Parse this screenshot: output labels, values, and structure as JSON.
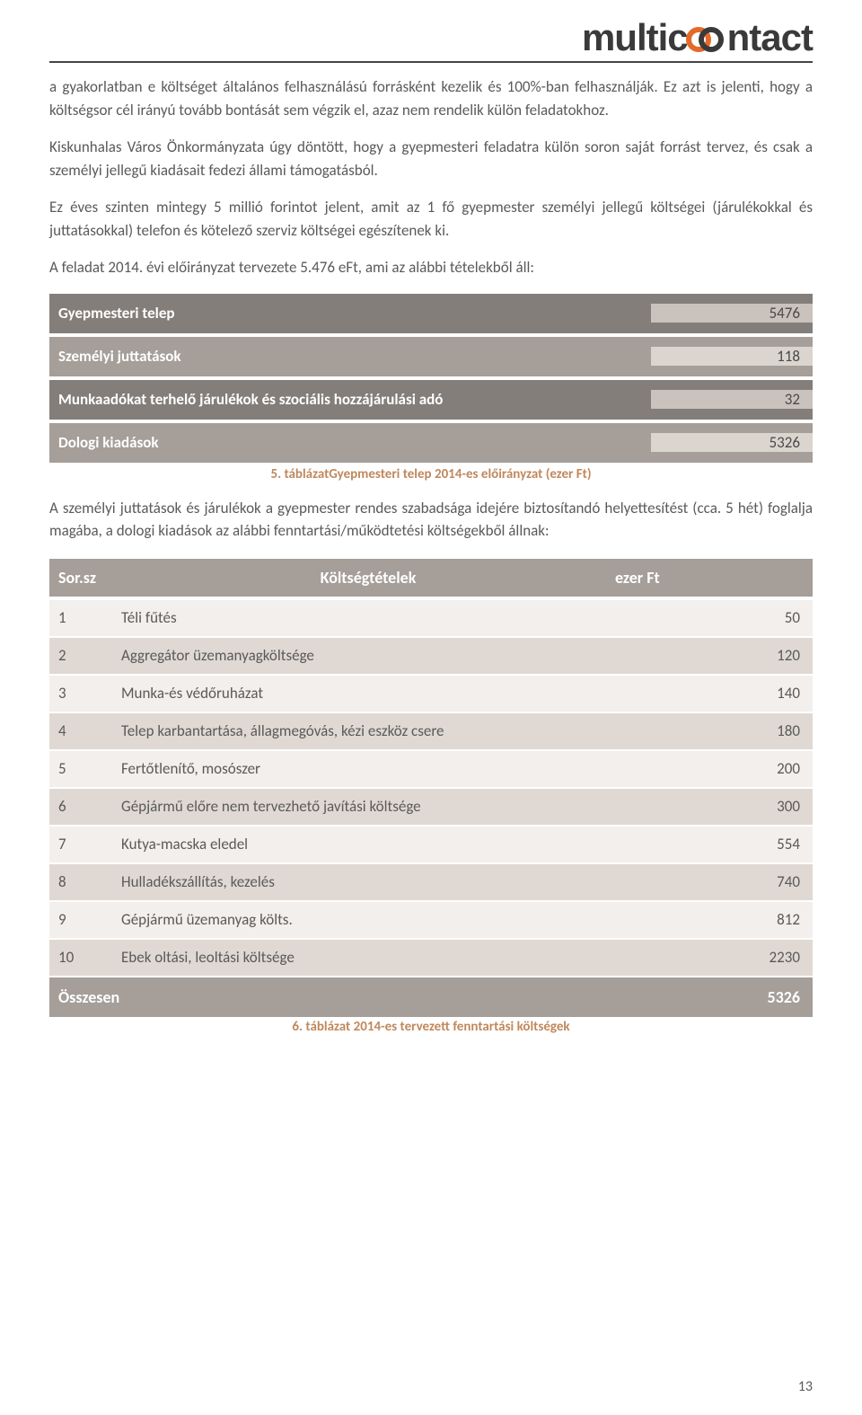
{
  "brand": {
    "part1": "multic",
    "part2": "ntact"
  },
  "paragraphs": {
    "p1": "a gyakorlatban e költséget általános felhasználású forrásként kezelik és 100%-ban felhasználják. Ez azt is jelenti, hogy a költségsor cél irányú tovább bontását sem végzik el, azaz nem rendelik külön feladatokhoz.",
    "p2": "Kiskunhalas Város Önkormányzata úgy döntött, hogy a gyepmesteri feladatra külön soron saját forrást tervez, és csak a személyi jellegű kiadásait fedezi állami támogatásból.",
    "p3": "Ez éves szinten mintegy 5 millió forintot jelent, amit az 1 fő gyepmester személyi jellegű költségei (járulékokkal és juttatásokkal) telefon és kötelező szerviz költségei egészítenek ki.",
    "p4": "A feladat 2014. évi előirányzat tervezete 5.476 eFt, ami az alábbi tételekből áll:",
    "p5": "A személyi juttatások és járulékok a gyepmester rendes szabadsága idejére biztosítandó helyettesítést (cca. 5 hét) foglalja magába, a dologi kiadások az alábbi fenntartási/működtetési költségekből állnak:"
  },
  "table1": {
    "rows": [
      {
        "label": "Gyepmesteri telep",
        "value": "5476",
        "cls": "t1-dark"
      },
      {
        "label": "Személyi juttatások",
        "value": "118",
        "cls": "t1-light"
      },
      {
        "label": "Munkaadókat terhelő járulékok és szociális hozzájárulási adó",
        "value": "32",
        "cls": "t1-dark"
      },
      {
        "label": "Dologi kiadások",
        "value": "5326",
        "cls": "t1-light"
      }
    ],
    "caption": "5. táblázatGyepmesteri telep 2014-es előirányzat (ezer Ft)"
  },
  "table2": {
    "header": {
      "c1": "Sor.sz",
      "c2": "Költségtételek",
      "c3": "ezer Ft"
    },
    "rows": [
      {
        "n": "1",
        "item": "Téli fűtés",
        "val": "50"
      },
      {
        "n": "2",
        "item": "Aggregátor üzemanyagköltsége",
        "val": "120"
      },
      {
        "n": "3",
        "item": "Munka-és védőruházat",
        "val": "140"
      },
      {
        "n": "4",
        "item": "Telep karbantartása, állagmegóvás, kézi eszköz csere",
        "val": "180"
      },
      {
        "n": "5",
        "item": "Fertőtlenítő, mosószer",
        "val": "200"
      },
      {
        "n": "6",
        "item": "Gépjármű előre nem tervezhető javítási költsége",
        "val": "300"
      },
      {
        "n": "7",
        "item": "Kutya-macska eledel",
        "val": "554"
      },
      {
        "n": "8",
        "item": "Hulladékszállítás, kezelés",
        "val": "740"
      },
      {
        "n": "9",
        "item": "Gépjármű üzemanyag költs.",
        "val": "812"
      },
      {
        "n": "10",
        "item": "Ebek oltási, leoltási költsége",
        "val": "2230"
      }
    ],
    "total": {
      "label": "Összesen",
      "val": "5326"
    },
    "caption": "6. táblázat 2014-es tervezett fenntartási költségek"
  },
  "pageNumber": "13",
  "colors": {
    "header_dark": "#837e7a",
    "header_light": "#a59e99",
    "value_dark": "#c9c2bd",
    "value_light": "#dbd5cf",
    "row_light": "#f2efed",
    "row_dark": "#e0d9d3",
    "caption": "#c0885c",
    "text": "#5a5a5a",
    "logo_orange": "#e46a2a",
    "logo_dark": "#3a3a3a"
  }
}
